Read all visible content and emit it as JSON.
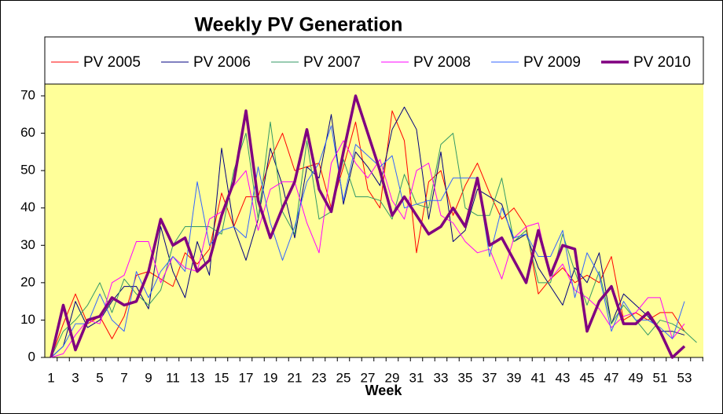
{
  "chart_data": {
    "type": "line",
    "title": "Weekly PV Generation",
    "x_label": "Week",
    "categories": [
      1,
      null,
      3,
      null,
      5,
      null,
      7,
      null,
      9,
      null,
      11,
      null,
      13,
      null,
      15,
      null,
      17,
      null,
      19,
      null,
      21,
      null,
      23,
      null,
      25,
      null,
      27,
      null,
      29,
      null,
      31,
      null,
      33,
      null,
      35,
      null,
      37,
      null,
      39,
      null,
      41,
      null,
      43,
      null,
      45,
      null,
      47,
      null,
      49,
      null,
      51,
      null,
      53,
      null
    ],
    "ylim": [
      0,
      70
    ],
    "yticks": [
      0,
      10,
      20,
      30,
      40,
      50,
      60,
      70
    ],
    "background": "#ffff99",
    "series": [
      {
        "name": "PV 2005",
        "color": "#ff0000",
        "width": 1,
        "values": [
          0,
          9,
          17,
          9,
          11,
          5,
          11,
          22,
          23,
          21,
          19,
          28,
          25,
          29,
          44,
          35,
          43,
          43,
          53,
          60,
          50,
          51,
          52,
          40,
          51,
          63,
          45,
          40,
          66,
          58,
          28,
          47,
          50,
          38,
          46,
          52,
          44,
          37,
          40,
          35,
          17,
          21,
          24,
          20,
          22,
          20,
          27,
          10,
          12,
          10,
          12,
          12,
          7,
          null
        ]
      },
      {
        "name": "PV 2006",
        "color": "#000080",
        "width": 1,
        "values": [
          0,
          3,
          15,
          8,
          10,
          15,
          19,
          19,
          13,
          35,
          23,
          16,
          31,
          22,
          56,
          35,
          26,
          37,
          56,
          46,
          32,
          51,
          48,
          65,
          41,
          55,
          51,
          46,
          61,
          67,
          61,
          37,
          55,
          31,
          34,
          45,
          43,
          41,
          31,
          33,
          24,
          19,
          14,
          24,
          20,
          28,
          9,
          17,
          14,
          11,
          7,
          7,
          6,
          null
        ]
      },
      {
        "name": "PV 2007",
        "color": "#339966",
        "width": 1,
        "values": [
          0,
          7,
          10,
          14,
          20,
          12,
          21,
          17,
          14,
          18,
          30,
          35,
          35,
          35,
          33,
          50,
          60,
          37,
          63,
          39,
          33,
          58,
          37,
          39,
          53,
          43,
          43,
          42,
          37,
          49,
          41,
          40,
          57,
          60,
          40,
          38,
          38,
          48,
          31,
          34,
          20,
          20,
          33,
          23,
          14,
          23,
          9,
          14,
          10,
          6,
          10,
          9,
          7,
          4
        ]
      },
      {
        "name": "PV 2008",
        "color": "#ff00ff",
        "width": 1,
        "values": [
          0,
          1,
          6,
          10,
          9,
          20,
          22,
          31,
          31,
          20,
          27,
          24,
          23,
          37,
          39,
          46,
          50,
          34,
          45,
          47,
          47,
          36,
          28,
          52,
          58,
          52,
          48,
          53,
          42,
          37,
          50,
          52,
          38,
          36,
          31,
          28,
          29,
          21,
          32,
          35,
          36,
          21,
          25,
          18,
          16,
          13,
          8,
          11,
          12,
          16,
          16,
          5,
          9,
          null
        ]
      },
      {
        "name": "PV 2009",
        "color": "#3366ff",
        "width": 1,
        "values": [
          0,
          3,
          9,
          9,
          17,
          10,
          7,
          23,
          16,
          23,
          27,
          23,
          47,
          30,
          34,
          35,
          32,
          51,
          36,
          26,
          35,
          47,
          52,
          62,
          42,
          57,
          54,
          51,
          54,
          40,
          41,
          42,
          42,
          48,
          48,
          48,
          27,
          40,
          32,
          33,
          27,
          27,
          34,
          16,
          28,
          22,
          7,
          15,
          10,
          10,
          8,
          5,
          15,
          null
        ]
      },
      {
        "name": "PV 2010",
        "color": "#800080",
        "width": 3.5,
        "values": [
          0,
          14,
          2,
          10,
          11,
          16,
          14,
          15,
          23,
          37,
          30,
          32,
          23,
          26,
          38,
          47,
          66,
          42,
          32,
          40,
          47,
          61,
          45,
          39,
          55,
          70,
          60,
          50,
          38,
          43,
          38,
          33,
          35,
          40,
          35,
          48,
          30,
          32,
          26,
          20,
          34,
          22,
          30,
          29,
          7,
          15,
          19,
          9,
          9,
          12,
          7,
          0,
          3,
          null
        ]
      }
    ]
  }
}
